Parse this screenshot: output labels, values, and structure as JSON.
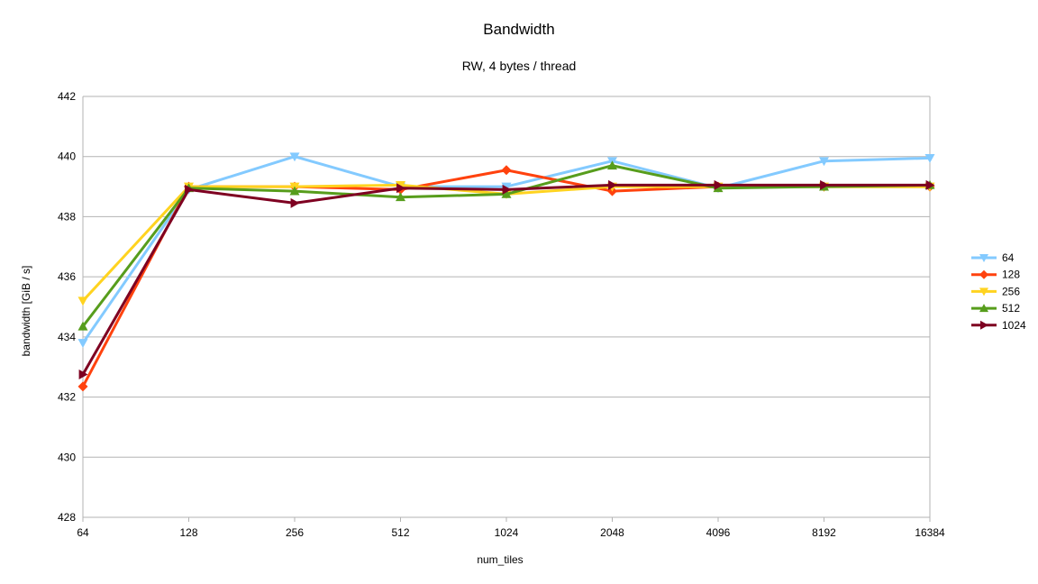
{
  "chart_data": {
    "type": "line",
    "title": "Bandwidth",
    "subtitle": "RW, 4 bytes / thread",
    "xlabel": "num_tiles",
    "ylabel": "bandwidth [GiB / s]",
    "categories": [
      "64",
      "128",
      "256",
      "512",
      "1024",
      "2048",
      "4096",
      "8192",
      "16384"
    ],
    "ylim": [
      428,
      442
    ],
    "yticks": [
      428,
      430,
      432,
      434,
      436,
      438,
      440,
      442
    ],
    "grid": true,
    "legend": "right",
    "series": [
      {
        "name": "64",
        "color": "#83CAFF",
        "marker": "triangle-down",
        "values": [
          433.8,
          438.9,
          440.0,
          439.0,
          439.0,
          439.85,
          438.95,
          439.85,
          439.95
        ]
      },
      {
        "name": "128",
        "color": "#FF420E",
        "marker": "diamond",
        "values": [
          432.35,
          439.0,
          439.0,
          438.9,
          439.55,
          438.85,
          439.0,
          439.0,
          439.0
        ]
      },
      {
        "name": "256",
        "color": "#FFD320",
        "marker": "triangle-down",
        "values": [
          435.2,
          439.0,
          439.0,
          439.05,
          438.75,
          439.0,
          439.0,
          439.0,
          439.0
        ]
      },
      {
        "name": "512",
        "color": "#579D1C",
        "marker": "triangle-up",
        "values": [
          434.35,
          438.95,
          438.85,
          438.65,
          438.75,
          439.7,
          438.95,
          439.0,
          439.05
        ]
      },
      {
        "name": "1024",
        "color": "#7E0021",
        "marker": "triangle-right",
        "values": [
          432.75,
          438.9,
          438.45,
          438.95,
          438.9,
          439.05,
          439.05,
          439.05,
          439.05
        ]
      }
    ]
  }
}
